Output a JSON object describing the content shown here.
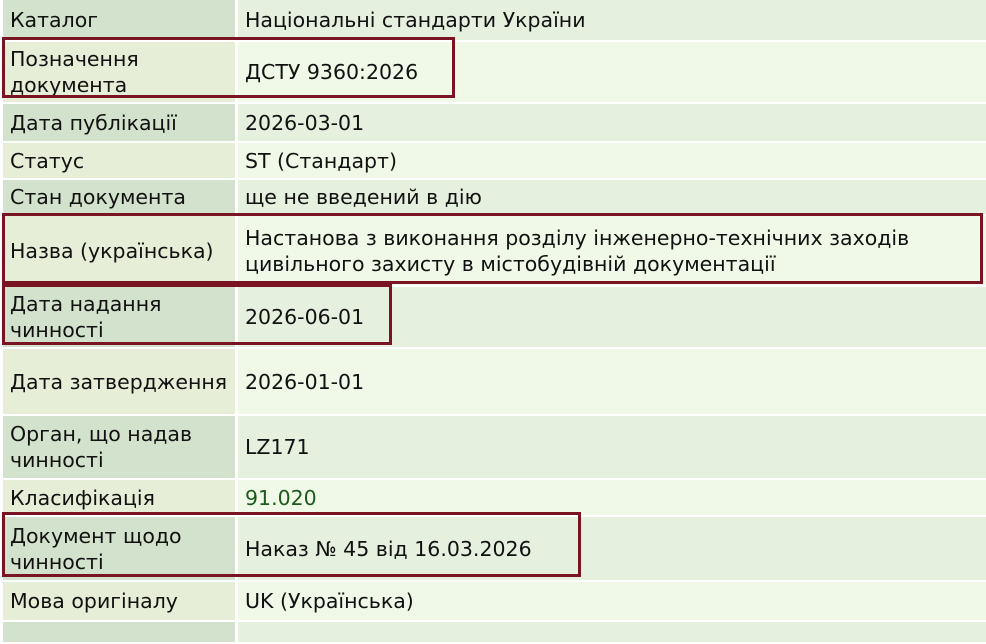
{
  "rows": [
    {
      "label": "Каталог",
      "value": "Національні стандарти України"
    },
    {
      "label": "Позначення документа",
      "value": "ДСТУ 9360:2026",
      "highlighted": true
    },
    {
      "label": "Дата публікації",
      "value": "2026-03-01"
    },
    {
      "label": "Статус",
      "value": "ST (Стандарт)"
    },
    {
      "label": "Стан документа",
      "value": "ще не введений в дію"
    },
    {
      "label": "Назва (українська)",
      "value": "Настанова з виконання розділу інженерно-технічних заходів цивільного захисту в містобудівній документації",
      "highlighted": true
    },
    {
      "label": "Дата надання чинності",
      "value": "2026-06-01",
      "highlighted": true
    },
    {
      "label": "Дата затвердження",
      "value": "2026-01-01"
    },
    {
      "label": "Орган, що надав чинності",
      "value": "LZ171"
    },
    {
      "label": "Класифікація",
      "value": "91.020",
      "link": true
    },
    {
      "label": "Документ щодо чинності",
      "value": "Наказ № 45 від 16.03.2026",
      "highlighted": true
    },
    {
      "label": "Мова оригіналу",
      "value": "UK (Українська)"
    }
  ],
  "colors": {
    "highlight_border": "#7a1422",
    "link": "#1e5a1e"
  }
}
